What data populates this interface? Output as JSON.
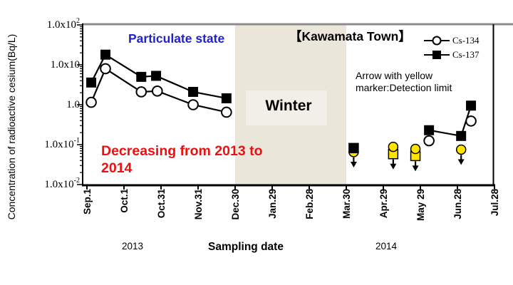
{
  "annotations": {
    "particulate_state": "Particulate state",
    "location_title": "【Kawamata Town】",
    "winter_label": "Winter",
    "decreasing_note": "Decreasing from 2013 to 2014",
    "detection_note": {
      "line1": "Arrow with yellow",
      "line2": "marker:Detection limit"
    },
    "year_left": "2013",
    "year_right": "2014"
  },
  "legend": {
    "items": [
      {
        "label": "Cs-134",
        "marker": "open-circle"
      },
      {
        "label": "Cs-137",
        "marker": "filled-square"
      }
    ]
  },
  "colors": {
    "particulate_blue": "#2020CC",
    "note_red": "#EE1010",
    "winter_band": "#EAE6DA",
    "winter_box": "#F1EFE7",
    "marker_yellow": "#FFE400",
    "top_border_gray": "#8C8C8C",
    "series_black": "#000000"
  },
  "chart_data": {
    "type": "line",
    "title": "【Kawamata Town】",
    "xlabel": "Sampling date",
    "ylabel": "Concentration of radioactive cesium(Bq/L)",
    "y_scale": "log",
    "ylim": [
      0.01,
      100
    ],
    "y_tick_values": [
      100,
      10,
      1,
      0.1,
      0.01
    ],
    "y_tick_labels": [
      {
        "base": "1.0x10",
        "sup": "2"
      },
      {
        "base": "1.0x10",
        "sup": ""
      },
      {
        "base": "1.0",
        "sup": ""
      },
      {
        "base": "1.0x10",
        "sup": "-1"
      },
      {
        "base": "1.0x10",
        "sup": "-2"
      }
    ],
    "x_tick_days": [
      0,
      30,
      60,
      90,
      120,
      150,
      180,
      210,
      240,
      270,
      300,
      330
    ],
    "x_tick_labels": [
      "Sep.1",
      "Oct.1",
      "Oct.31",
      "Nov.31",
      "Dec.30",
      "Jan.29",
      "Feb.28",
      "Mar.30",
      "Apr.29",
      "May 29",
      "Jun.28",
      "Jul.28"
    ],
    "winter_band": {
      "start_label": "Dec.30",
      "end_label": "Mar.30",
      "start_day": 120,
      "end_day": 210,
      "label": "Winter"
    },
    "series": [
      {
        "name": "Cs-134",
        "marker": "open-circle",
        "segments": [
          [
            {
              "date": "Sep.4",
              "day": 3.5,
              "value": 1.15
            },
            {
              "date": "Sep.16",
              "day": 15,
              "value": 8.0
            },
            {
              "date": "Oct.15",
              "day": 44,
              "value": 2.1
            },
            {
              "date": "Oct.27",
              "day": 57,
              "value": 2.2
            },
            {
              "date": "Nov.26",
              "day": 86,
              "value": 1.0
            },
            {
              "date": "Dec.23",
              "day": 113,
              "value": 0.65
            }
          ]
        ],
        "isolated_points": [
          {
            "date": "Jun.4",
            "day": 277,
            "value": 0.125
          },
          {
            "date": "Jul.9",
            "day": 311,
            "value": 0.39
          }
        ]
      },
      {
        "name": "Cs-137",
        "marker": "filled-square",
        "segments": [
          [
            {
              "date": "Sep.4",
              "day": 3.5,
              "value": 3.6
            },
            {
              "date": "Sep.16",
              "day": 15,
              "value": 18
            },
            {
              "date": "Oct.15",
              "day": 44,
              "value": 5.0
            },
            {
              "date": "Oct.27",
              "day": 56,
              "value": 5.3
            },
            {
              "date": "Nov.26",
              "day": 86,
              "value": 2.1
            },
            {
              "date": "Dec.23",
              "day": 113,
              "value": 1.45
            }
          ],
          [
            {
              "date": "Jun.4",
              "day": 277,
              "value": 0.23
            },
            {
              "date": "Jul.1",
              "day": 303,
              "value": 0.165
            },
            {
              "date": "Jul.9",
              "day": 311,
              "value": 0.95
            }
          ]
        ],
        "isolated_points": []
      }
    ],
    "detection_limits": [
      {
        "date": "Apr.4",
        "day": 216,
        "markers": [
          {
            "shape": "circle",
            "color": "yellow",
            "value": 0.065
          },
          {
            "shape": "square",
            "color": "black",
            "value": 0.082
          }
        ]
      },
      {
        "date": "May 6",
        "day": 248,
        "markers": [
          {
            "shape": "square",
            "color": "yellow",
            "value": 0.058
          },
          {
            "shape": "circle",
            "color": "yellow",
            "value": 0.088
          }
        ]
      },
      {
        "date": "May 24",
        "day": 266,
        "markers": [
          {
            "shape": "square",
            "color": "yellow",
            "value": 0.052
          },
          {
            "shape": "circle",
            "color": "yellow",
            "value": 0.078
          }
        ]
      },
      {
        "date": "Jul.1",
        "day": 303,
        "markers": [
          {
            "shape": "circle",
            "color": "yellow",
            "value": 0.075
          }
        ]
      }
    ]
  }
}
